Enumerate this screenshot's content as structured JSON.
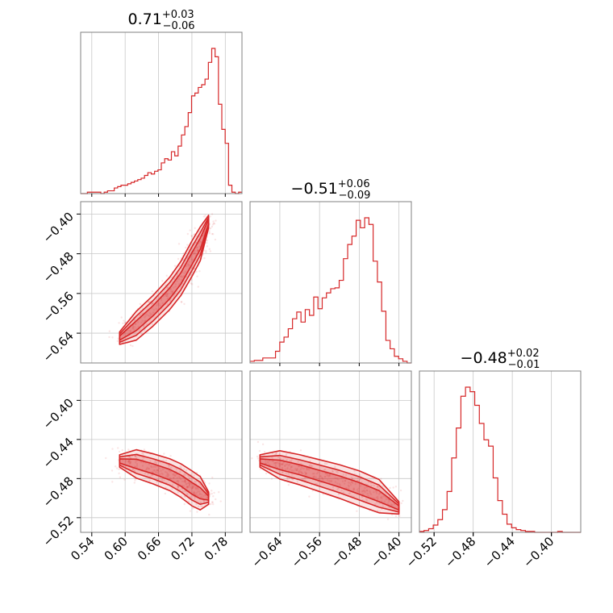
{
  "chart_data": {
    "type": "corner",
    "color": "#d62728",
    "grid": true,
    "parameters": [
      {
        "title": {
          "median": "0.71",
          "plus": "+0.03",
          "minus": "−0.06"
        },
        "range": [
          0.52,
          0.81
        ],
        "ticks": [
          0.54,
          0.6,
          0.66,
          0.72,
          0.78
        ],
        "tick_labels": [
          "0.54",
          "0.60",
          "0.66",
          "0.72",
          "0.78"
        ]
      },
      {
        "title": {
          "median": "−0.51",
          "plus": "+0.06",
          "minus": "−0.09"
        },
        "range": [
          -0.7,
          -0.375
        ],
        "ticks": [
          -0.64,
          -0.56,
          -0.48,
          -0.4
        ],
        "tick_labels": [
          "−0.64",
          "−0.56",
          "−0.48",
          "−0.40"
        ]
      },
      {
        "title": {
          "median": "−0.48",
          "plus": "+0.02",
          "minus": "−0.01"
        },
        "range": [
          -0.535,
          -0.37
        ],
        "ticks": [
          -0.52,
          -0.48,
          -0.44,
          -0.4
        ],
        "tick_labels": [
          "−0.52",
          "−0.48",
          "−0.44",
          "−0.40"
        ]
      }
    ],
    "histograms": [
      {
        "param": 0,
        "x_start": 0.52,
        "x_end": 0.81,
        "values": [
          0,
          0,
          1,
          1,
          1,
          1,
          0,
          1,
          2,
          2,
          4,
          5,
          6,
          6,
          7,
          8,
          9,
          10,
          11,
          13,
          15,
          14,
          16,
          17,
          22,
          25,
          24,
          30,
          27,
          34,
          42,
          48,
          58,
          70,
          72,
          76,
          78,
          82,
          94,
          104,
          98,
          64,
          46,
          36,
          6,
          1,
          0,
          1
        ]
      },
      {
        "param": 1,
        "x_start": -0.7,
        "x_end": -0.375,
        "values": [
          2,
          3,
          3,
          6,
          6,
          6,
          14,
          25,
          31,
          41,
          53,
          61,
          49,
          64,
          57,
          79,
          65,
          78,
          84,
          89,
          90,
          99,
          125,
          142,
          152,
          171,
          162,
          174,
          166,
          122,
          97,
          62,
          27,
          17,
          8,
          5,
          2,
          0
        ]
      },
      {
        "param": 2,
        "x_start": -0.535,
        "x_end": -0.37,
        "values": [
          1,
          2,
          4,
          8,
          14,
          25,
          45,
          82,
          115,
          150,
          160,
          155,
          140,
          120,
          102,
          95,
          60,
          35,
          20,
          9,
          5,
          3,
          2,
          1,
          1,
          0,
          0,
          0,
          0,
          0,
          1,
          0,
          0,
          0,
          0
        ]
      }
    ],
    "pairs": [
      {
        "x_param": 0,
        "y_param": 1,
        "ridge": [
          [
            0.59,
            -0.65
          ],
          [
            0.62,
            -0.625
          ],
          [
            0.65,
            -0.595
          ],
          [
            0.68,
            -0.56
          ],
          [
            0.7,
            -0.53
          ],
          [
            0.72,
            -0.49
          ],
          [
            0.735,
            -0.46
          ],
          [
            0.75,
            -0.415
          ]
        ],
        "width": 0.012,
        "scatter_spread": [
          0.018,
          0.02
        ]
      },
      {
        "x_param": 0,
        "y_param": 2,
        "ridge": [
          [
            0.59,
            -0.462
          ],
          [
            0.62,
            -0.465
          ],
          [
            0.65,
            -0.47
          ],
          [
            0.68,
            -0.476
          ],
          [
            0.7,
            -0.482
          ],
          [
            0.72,
            -0.49
          ],
          [
            0.735,
            -0.495
          ],
          [
            0.75,
            -0.5
          ]
        ],
        "width": 0.006,
        "scatter_spread": [
          0.02,
          0.012
        ]
      },
      {
        "x_param": 1,
        "y_param": 2,
        "ridge": [
          [
            -0.68,
            -0.462
          ],
          [
            -0.64,
            -0.466
          ],
          [
            -0.6,
            -0.471
          ],
          [
            -0.56,
            -0.477
          ],
          [
            -0.52,
            -0.483
          ],
          [
            -0.48,
            -0.49
          ],
          [
            -0.44,
            -0.498
          ],
          [
            -0.4,
            -0.51
          ]
        ],
        "width": 0.006,
        "scatter_spread": [
          0.02,
          0.012
        ]
      }
    ]
  }
}
